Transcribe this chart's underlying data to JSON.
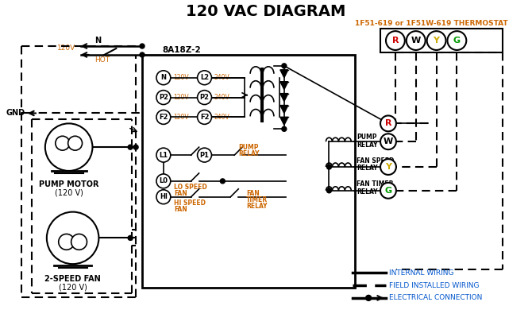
{
  "title": "120 VAC DIAGRAM",
  "title_color": "#000000",
  "title_fontsize": 14,
  "thermostat_label": "1F51-619 or 1F51W-619 THERMOSTAT",
  "thermostat_color": "#cc6600",
  "controller_label": "8A18Z-2",
  "pump_motor_label": [
    "PUMP MOTOR",
    "(120 V)"
  ],
  "fan_label": [
    "2-SPEED FAN",
    "(120 V)"
  ],
  "legend_items": [
    "INTERNAL WIRING",
    "FIELD INSTALLED WIRING",
    "ELECTRICAL CONNECTION"
  ],
  "legend_color": "#0055cc",
  "bg_color": "#ffffff",
  "line_color": "#000000",
  "orange_color": "#cc6600",
  "label_R_color": "#cc0000",
  "label_W_color": "#000000",
  "label_Y_color": "#ccaa00",
  "label_G_color": "#009900"
}
